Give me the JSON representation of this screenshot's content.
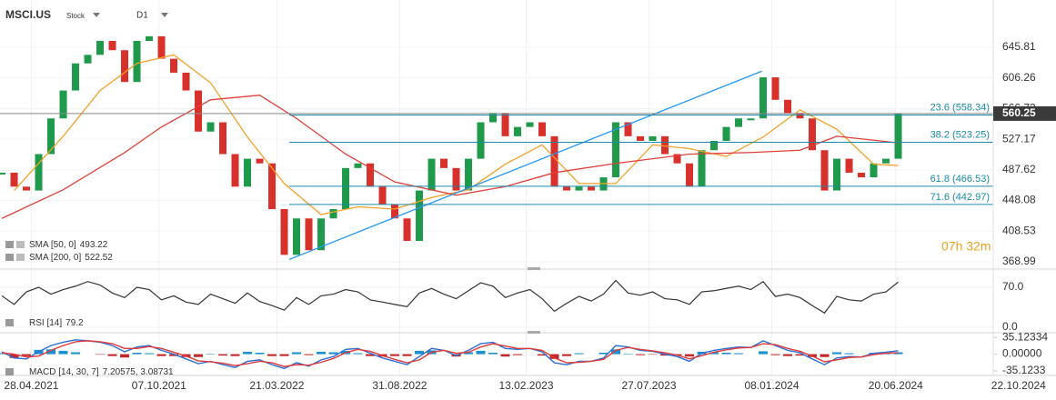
{
  "header": {
    "symbol": "MSCI.US",
    "kind": "Stock",
    "timeframe": "D1"
  },
  "timer": "07h 32m",
  "value_separator": ", ",
  "chart_data": [
    {
      "type": "candlestick",
      "up_color": "#1e9a4a",
      "down_color": "#d8312b",
      "values": [
        484,
        466,
        461,
        508,
        554,
        590,
        625,
        636,
        654,
        642,
        601,
        654,
        660,
        631,
        613,
        590,
        537,
        549,
        508,
        466,
        502,
        496,
        437,
        378,
        425,
        384,
        425,
        437,
        490,
        496,
        466,
        443,
        425,
        396,
        461,
        502,
        490,
        461,
        502,
        549,
        561,
        531,
        543,
        549,
        531,
        466,
        461,
        466,
        461,
        478,
        549,
        531,
        525,
        531,
        508,
        496,
        466,
        513,
        525,
        543,
        554,
        554,
        607,
        578,
        561,
        554,
        513,
        461,
        502,
        484,
        478,
        496,
        502,
        560.25
      ],
      "xlim": [
        -0.15,
        85.85
      ],
      "xticks": [
        {
          "value": 2.4,
          "label": "28.04.2021"
        },
        {
          "value": 12.8,
          "label": "07.10.2021"
        },
        {
          "value": 22.4,
          "label": "21.03.2022"
        },
        {
          "value": 32.4,
          "label": "31.08.2022"
        },
        {
          "value": 42.7,
          "label": "13.02.2023"
        },
        {
          "value": 52.7,
          "label": "27.07.2023"
        },
        {
          "value": 62.7,
          "label": "08.01.2024"
        },
        {
          "value": 72.8,
          "label": "20.06.2024"
        },
        {
          "value": 82.8,
          "label": "22.10.2024"
        }
      ],
      "ylim": [
        360.8,
        700.9
      ],
      "yticks": [
        645.81,
        606.26,
        566.72,
        527.17,
        487.62,
        448.08,
        408.53,
        368.99
      ],
      "overlays": [
        {
          "name": "SMA [50, 0]",
          "color": "#f5a028",
          "x": [
            1,
            5,
            8,
            11,
            14,
            17,
            20,
            23,
            26,
            29,
            32,
            35,
            38,
            41,
            44,
            47,
            50,
            53,
            56,
            59,
            62,
            65,
            68,
            71,
            73
          ],
          "values": [
            461,
            531,
            590,
            625,
            636,
            600,
            530,
            470,
            430,
            440,
            437,
            452,
            462,
            495,
            520,
            470,
            470,
            520,
            515,
            505,
            530,
            565,
            540,
            495,
            493.22
          ]
        },
        {
          "name": "SMA [200, 0]",
          "color": "#e0403a",
          "x": [
            0,
            5,
            10,
            13,
            17,
            21,
            24,
            28,
            32,
            37,
            41,
            45,
            50,
            56,
            61,
            65,
            68,
            73
          ],
          "values": [
            425,
            462,
            510,
            543,
            578,
            584,
            554,
            508,
            472,
            455,
            466,
            484,
            496,
            508,
            510,
            513,
            531,
            522.52
          ]
        }
      ],
      "trendline": {
        "color": "#2196f3",
        "x": [
          23.4,
          61.9
        ],
        "values": [
          372,
          615
        ]
      },
      "fib_color": "#1a8aa8",
      "fib_levels": [
        {
          "value": 558.34,
          "label": "23.6 (558.34)"
        },
        {
          "value": 523.25,
          "label": "38.2 (523.25)"
        },
        {
          "value": 466.53,
          "label": "61.8 (466.53)"
        },
        {
          "value": 442.97,
          "label": "71.6 (442.97)"
        }
      ]
    },
    {
      "type": "line",
      "name": "RSI [14]",
      "color": "#333333",
      "values": [
        55,
        40,
        62,
        70,
        58,
        66,
        72,
        80,
        74,
        60,
        52,
        70,
        66,
        48,
        55,
        44,
        40,
        58,
        50,
        42,
        60,
        45,
        38,
        30,
        52,
        40,
        55,
        58,
        66,
        62,
        48,
        44,
        40,
        36,
        60,
        68,
        58,
        50,
        64,
        78,
        72,
        52,
        60,
        66,
        50,
        28,
        42,
        54,
        46,
        58,
        82,
        60,
        56,
        62,
        50,
        48,
        40,
        62,
        64,
        68,
        72,
        66,
        80,
        54,
        58,
        52,
        38,
        25,
        54,
        48,
        46,
        58,
        62,
        79.2
      ],
      "ylim": [
        -8,
        95.5
      ],
      "yticks": [
        {
          "value": 70,
          "label": "70.0"
        },
        {
          "value": 0,
          "label": "0.0"
        }
      ]
    },
    {
      "type": "macd",
      "name": "MACD [14, 30, 7]",
      "macd": {
        "color": "#2a6fd6",
        "values": [
          5,
          -8,
          -10,
          5,
          18,
          25,
          30,
          28,
          25,
          18,
          5,
          15,
          18,
          8,
          0,
          -10,
          -20,
          -15,
          -22,
          -28,
          -15,
          -12,
          -22,
          -30,
          -18,
          -25,
          -12,
          -5,
          10,
          12,
          2,
          -8,
          -15,
          -22,
          -5,
          12,
          8,
          -3,
          8,
          22,
          25,
          12,
          10,
          12,
          5,
          -18,
          -22,
          -15,
          -15,
          -8,
          18,
          15,
          8,
          6,
          0,
          -5,
          -15,
          2,
          8,
          12,
          15,
          14,
          28,
          18,
          8,
          3,
          -10,
          -22,
          -8,
          -5,
          -6,
          2,
          4,
          7.20575
        ]
      },
      "signal": {
        "color": "#e03a3a",
        "values": [
          3,
          0,
          -6,
          -4,
          8,
          18,
          26,
          28,
          26,
          22,
          12,
          12,
          16,
          12,
          4,
          -4,
          -14,
          -16,
          -19,
          -24,
          -20,
          -15,
          -18,
          -26,
          -22,
          -23,
          -17,
          -9,
          3,
          10,
          6,
          -3,
          -11,
          -18,
          -12,
          4,
          8,
          2,
          4,
          15,
          22,
          17,
          12,
          12,
          8,
          -8,
          -18,
          -17,
          -15,
          -11,
          8,
          14,
          10,
          7,
          3,
          -2,
          -10,
          -3,
          4,
          9,
          13,
          14,
          22,
          20,
          12,
          6,
          -4,
          -16,
          -12,
          -7,
          -6,
          -1,
          2,
          3.08731
        ]
      },
      "histogram": {
        "positive_color": "#1b8fd0",
        "negative_color": "#c0282a",
        "values": [
          2,
          -8,
          -4,
          9,
          10,
          7,
          4,
          0,
          -1,
          -4,
          -7,
          3,
          2,
          -4,
          -4,
          -6,
          -6,
          1,
          -3,
          -4,
          5,
          3,
          -4,
          -4,
          4,
          -2,
          5,
          4,
          7,
          2,
          -4,
          -5,
          -4,
          -4,
          7,
          8,
          0,
          -5,
          4,
          7,
          3,
          -5,
          -2,
          0,
          -3,
          -10,
          -4,
          2,
          0,
          3,
          10,
          1,
          -2,
          -1,
          -3,
          -3,
          -5,
          5,
          4,
          3,
          2,
          0,
          6,
          -2,
          -4,
          -3,
          -6,
          -6,
          4,
          2,
          0,
          3,
          2,
          4
        ]
      },
      "ylim": [
        -42.7,
        44.9
      ],
      "yticks": [
        {
          "value": 35.12334,
          "label": "35.12334"
        },
        {
          "value": 0,
          "label": "0.00000"
        },
        {
          "value": -35.1233,
          "label": "-35.1233"
        }
      ]
    }
  ]
}
